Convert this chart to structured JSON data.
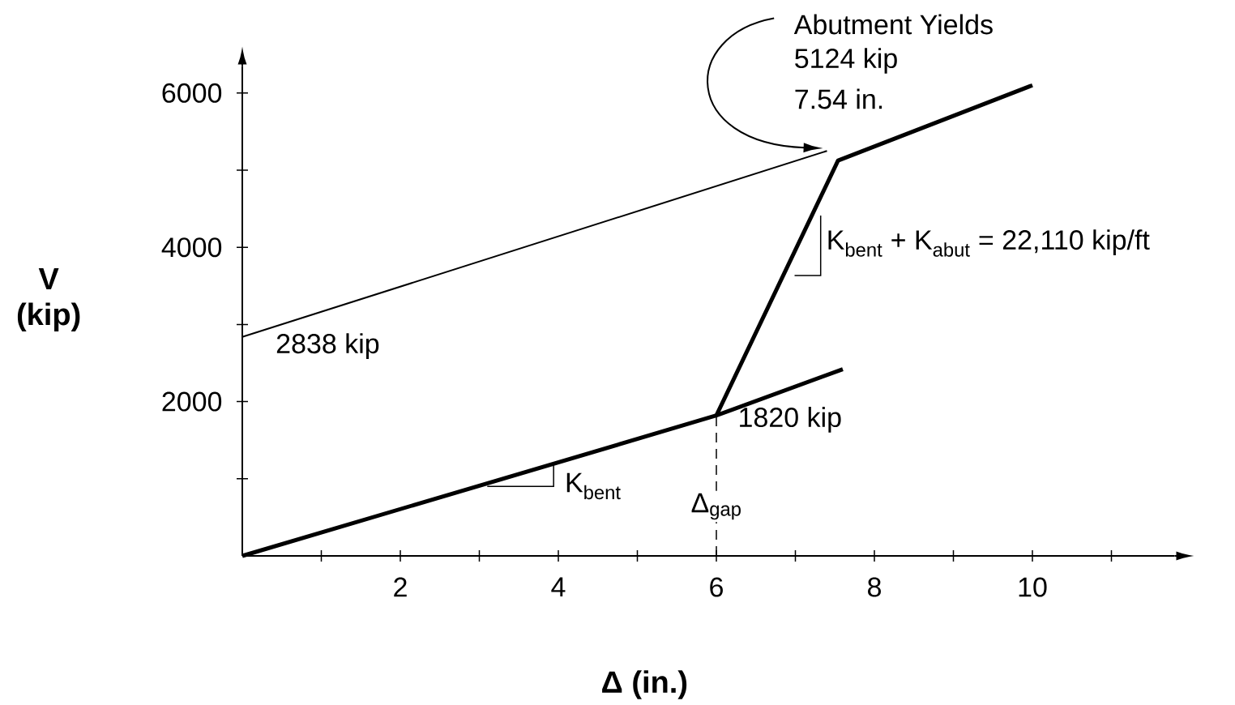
{
  "chart_data": {
    "type": "line",
    "xlabel": "Δ (in.)",
    "ylabel": "V (kip)",
    "xlim": [
      0,
      11.8
    ],
    "ylim": [
      0,
      6350
    ],
    "xticks": [
      {
        "value": 1,
        "label": null
      },
      2,
      {
        "value": 3,
        "label": null
      },
      4,
      {
        "value": 5,
        "label": null
      },
      6,
      {
        "value": 7,
        "label": null
      },
      8,
      {
        "value": 9,
        "label": null
      },
      10,
      {
        "value": 11,
        "label": null
      }
    ],
    "yticks": [
      {
        "value": 1000,
        "label": null
      },
      2000,
      {
        "value": 3000,
        "label": null
      },
      4000,
      {
        "value": 5000,
        "label": null
      },
      6000
    ],
    "marker": "none",
    "line_style": "solid",
    "series": [
      {
        "color": "#000000",
        "x": [
          0,
          6,
          7.6
        ],
        "values": [
          0,
          1820,
          2420
        ]
      },
      {
        "color": "#000000",
        "x": [
          6,
          7.54,
          10
        ],
        "values": [
          1820,
          5124,
          6100
        ]
      },
      {
        "color": "#000000",
        "x": [
          0,
          7.4
        ],
        "values": [
          2838,
          5250
        ]
      }
    ],
    "annotations": [
      "Abutment Yields",
      "5124 kip",
      "7.54 in.",
      {
        "text": "2838 kip",
        "x": 0,
        "y": 2838
      },
      {
        "text": "1820 kip",
        "x": 6,
        "y": 1820
      },
      "K$_{bent}$ + K$_{abut}$ = 22,110 kip/ft",
      {
        "text": "K$_{bent}$",
        "x": 3.94,
        "y": 1194
      }
    ],
    "ref_lines": [
      {
        "axis": "x",
        "value": 6,
        "label": "Δ$_{gap}$",
        "line_style": "dashed"
      }
    ]
  }
}
